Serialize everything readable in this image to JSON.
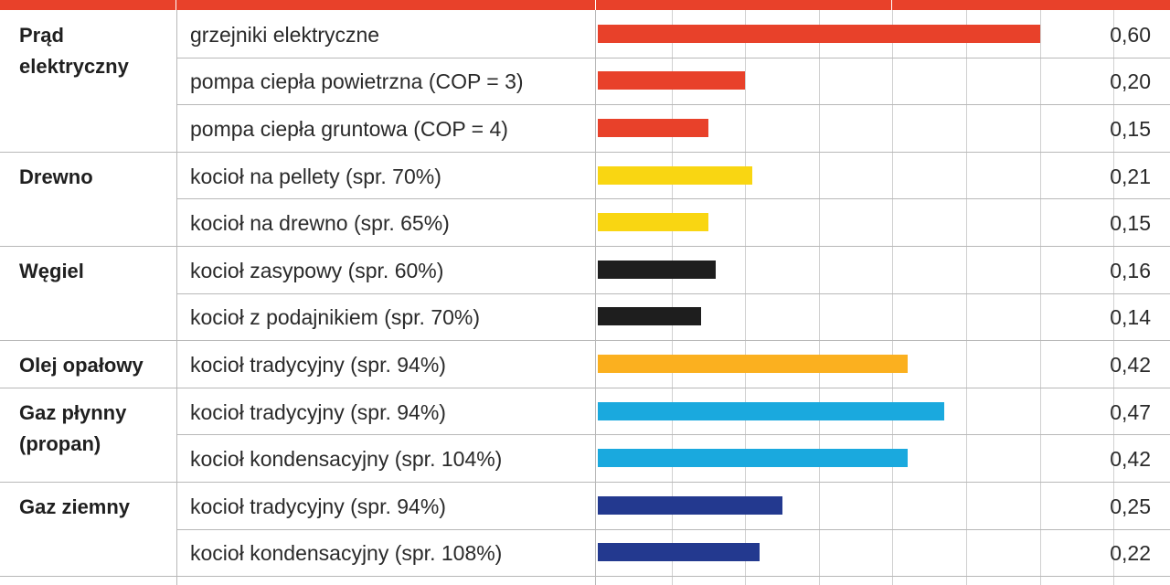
{
  "chart_data": {
    "type": "bar",
    "orientation": "horizontal",
    "grid": true,
    "xlim": [
      0,
      0.75
    ],
    "groups": [
      {
        "label": "Prąd\nelektryczny",
        "color": "#e8412a",
        "rows": [
          {
            "label": "grzejniki elektryczne",
            "value": 0.6,
            "value_text": "0,60"
          },
          {
            "label": "pompa ciepła powietrzna (COP = 3)",
            "value": 0.2,
            "value_text": "0,20"
          },
          {
            "label": "pompa ciepła gruntowa (COP = 4)",
            "value": 0.15,
            "value_text": "0,15"
          }
        ]
      },
      {
        "label": "Drewno",
        "color": "#f9d612",
        "rows": [
          {
            "label": "kocioł na pellety (spr. 70%)",
            "value": 0.21,
            "value_text": "0,21"
          },
          {
            "label": "kocioł na drewno (spr. 65%)",
            "value": 0.15,
            "value_text": "0,15"
          }
        ]
      },
      {
        "label": "Węgiel",
        "color": "#1e1e1e",
        "rows": [
          {
            "label": "kocioł zasypowy (spr. 60%)",
            "value": 0.16,
            "value_text": "0,16"
          },
          {
            "label": "kocioł z podajnikiem (spr. 70%)",
            "value": 0.14,
            "value_text": "0,14"
          }
        ]
      },
      {
        "label": "Olej opałowy",
        "color": "#fbb01f",
        "rows": [
          {
            "label": "kocioł tradycyjny (spr. 94%)",
            "value": 0.42,
            "value_text": "0,42"
          }
        ]
      },
      {
        "label": "Gaz płynny\n(propan)",
        "color": "#1aa9de",
        "rows": [
          {
            "label": "kocioł tradycyjny (spr. 94%)",
            "value": 0.47,
            "value_text": "0,47"
          },
          {
            "label": "kocioł kondensacyjny (spr. 104%)",
            "value": 0.42,
            "value_text": "0,42"
          }
        ]
      },
      {
        "label": "Gaz ziemny",
        "color": "#23398f",
        "rows": [
          {
            "label": "kocioł tradycyjny (spr. 94%)",
            "value": 0.25,
            "value_text": "0,25"
          },
          {
            "label": "kocioł kondensacyjny (spr. 108%)",
            "value": 0.22,
            "value_text": "0,22"
          }
        ]
      }
    ]
  },
  "colors": {
    "header": "#e8412a",
    "grid": "#d0d0d0",
    "border": "#b8b8b8"
  }
}
